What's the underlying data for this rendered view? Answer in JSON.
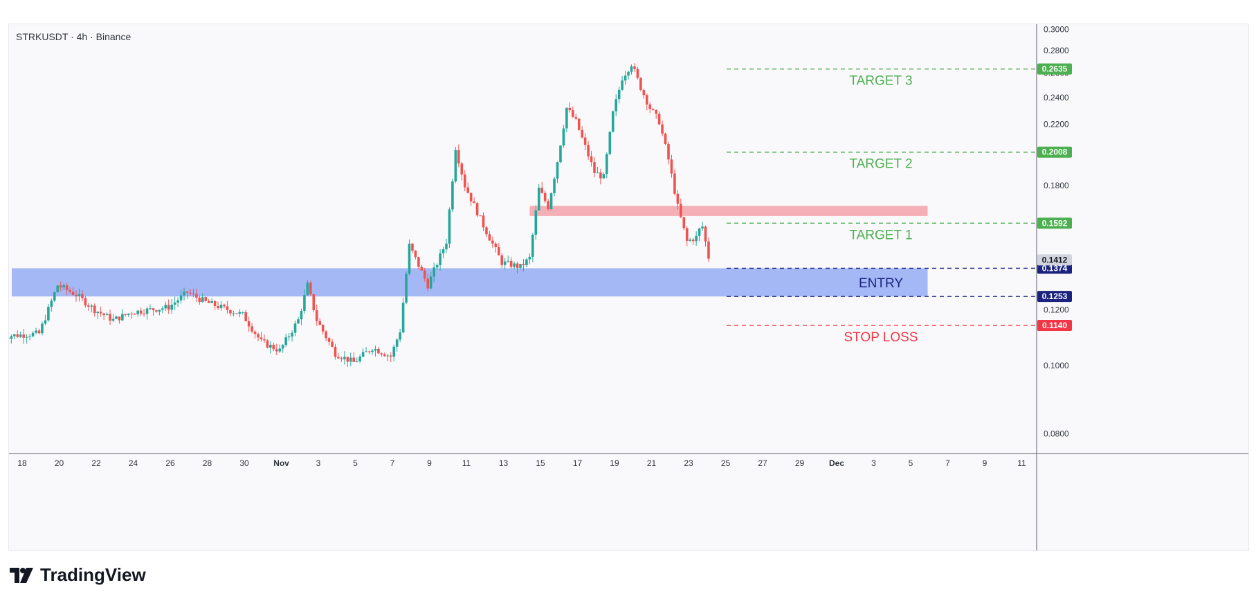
{
  "header": {
    "symbol_line": "STRKUSDT · 4h · Binance"
  },
  "brand": {
    "name": "TradingView"
  },
  "colors": {
    "up": "#26a69a",
    "down": "#ef5350",
    "target": "#4caf50",
    "entry": "#1a237e",
    "entry_zone": "#8fa8f5",
    "resistance_zone": "#f5a3aa",
    "stop": "#f23645",
    "last_price": "#d1d4dc"
  },
  "chart_data": {
    "type": "candlestick",
    "title": "STRKUSDT · 4h · Binance",
    "x_axis": {
      "ticks": [
        "18",
        "20",
        "22",
        "24",
        "26",
        "28",
        "30",
        "Nov",
        "3",
        "5",
        "7",
        "9",
        "11",
        "13",
        "15",
        "17",
        "19",
        "21",
        "23",
        "25",
        "27",
        "29",
        "Dec",
        "3",
        "5",
        "7",
        "9",
        "11"
      ]
    },
    "y_axis": {
      "scale": "log",
      "ylim": [
        0.075,
        0.305
      ],
      "ticks": [
        "0.3000",
        "0.2800",
        "0.2600",
        "0.2400",
        "0.2200",
        "0.1800",
        "0.1200",
        "0.1000",
        "0.0800"
      ],
      "tick_values": [
        0.3,
        0.28,
        0.26,
        0.24,
        0.22,
        0.18,
        0.12,
        0.1,
        0.08
      ]
    },
    "price_anchors": [
      {
        "date": "Oct 17",
        "price": 0.11
      },
      {
        "date": "Oct 19",
        "price": 0.111
      },
      {
        "date": "Oct 20",
        "price": 0.13
      },
      {
        "date": "Oct 21",
        "price": 0.126
      },
      {
        "date": "Oct 22",
        "price": 0.12
      },
      {
        "date": "Oct 23",
        "price": 0.116
      },
      {
        "date": "Oct 24",
        "price": 0.119
      },
      {
        "date": "Oct 26",
        "price": 0.121
      },
      {
        "date": "Oct 27",
        "price": 0.127
      },
      {
        "date": "Oct 28",
        "price": 0.123
      },
      {
        "date": "Oct 30",
        "price": 0.118
      },
      {
        "date": "Oct 31",
        "price": 0.108
      },
      {
        "date": "Nov 1",
        "price": 0.105
      },
      {
        "date": "Nov 2",
        "price": 0.116
      },
      {
        "date": "Nov 2.5",
        "price": 0.13
      },
      {
        "date": "Nov 3",
        "price": 0.116
      },
      {
        "date": "Nov 4",
        "price": 0.104
      },
      {
        "date": "Nov 5",
        "price": 0.101
      },
      {
        "date": "Nov 6",
        "price": 0.106
      },
      {
        "date": "Nov 7",
        "price": 0.103
      },
      {
        "date": "Nov 7.5",
        "price": 0.112
      },
      {
        "date": "Nov 8",
        "price": 0.148
      },
      {
        "date": "Nov 9",
        "price": 0.13
      },
      {
        "date": "Nov 10",
        "price": 0.15
      },
      {
        "date": "Nov 10.5",
        "price": 0.204
      },
      {
        "date": "Nov 11",
        "price": 0.18
      },
      {
        "date": "Nov 12",
        "price": 0.158
      },
      {
        "date": "Nov 13",
        "price": 0.14
      },
      {
        "date": "Nov 14",
        "price": 0.138
      },
      {
        "date": "Nov 14.5",
        "price": 0.142
      },
      {
        "date": "Nov 15",
        "price": 0.178
      },
      {
        "date": "Nov 15.5",
        "price": 0.168
      },
      {
        "date": "Nov 16",
        "price": 0.195
      },
      {
        "date": "Nov 16.5",
        "price": 0.232
      },
      {
        "date": "Nov 17",
        "price": 0.222
      },
      {
        "date": "Nov 18",
        "price": 0.188
      },
      {
        "date": "Nov 18.5",
        "price": 0.185
      },
      {
        "date": "Nov 19",
        "price": 0.228
      },
      {
        "date": "Nov 19.5",
        "price": 0.256
      },
      {
        "date": "Nov 20",
        "price": 0.268
      },
      {
        "date": "Nov 20.5",
        "price": 0.248
      },
      {
        "date": "Nov 21",
        "price": 0.232
      },
      {
        "date": "Nov 21.5",
        "price": 0.222
      },
      {
        "date": "Nov 22",
        "price": 0.196
      },
      {
        "date": "Nov 22.5",
        "price": 0.168
      },
      {
        "date": "Nov 23",
        "price": 0.15
      },
      {
        "date": "Nov 23.5",
        "price": 0.152
      },
      {
        "date": "Nov 23.8",
        "price": 0.159
      },
      {
        "date": "Nov 24.2",
        "price": 0.141
      }
    ],
    "zones": [
      {
        "name": "entry-zone",
        "from_date": "Oct 17",
        "to_date": "Dec 6",
        "low": 0.1253,
        "high": 0.1374
      },
      {
        "name": "resistance-zone",
        "from_date": "Nov 14.5",
        "to_date": "Dec 6",
        "low": 0.163,
        "high": 0.1685
      }
    ],
    "levels": [
      {
        "name": "target-3",
        "label": "TARGET 3",
        "price": 0.2635,
        "price_text": "0.2635",
        "kind": "target"
      },
      {
        "name": "target-2",
        "label": "TARGET 2",
        "price": 0.2008,
        "price_text": "0.2008",
        "kind": "target"
      },
      {
        "name": "target-1",
        "label": "TARGET 1",
        "price": 0.1592,
        "price_text": "0.1592",
        "kind": "target"
      },
      {
        "name": "entry-top",
        "label": "ENTRY",
        "price": 0.1374,
        "price_text": "0.1374",
        "kind": "entry"
      },
      {
        "name": "entry-bottom",
        "label": "",
        "price": 0.1253,
        "price_text": "0.1253",
        "kind": "entry"
      },
      {
        "name": "stop-loss",
        "label": "STOP LOSS",
        "price": 0.114,
        "price_text": "0.1140",
        "kind": "stop"
      }
    ],
    "last_price": {
      "price": 0.1412,
      "price_text": "0.1412"
    },
    "grid": false
  }
}
